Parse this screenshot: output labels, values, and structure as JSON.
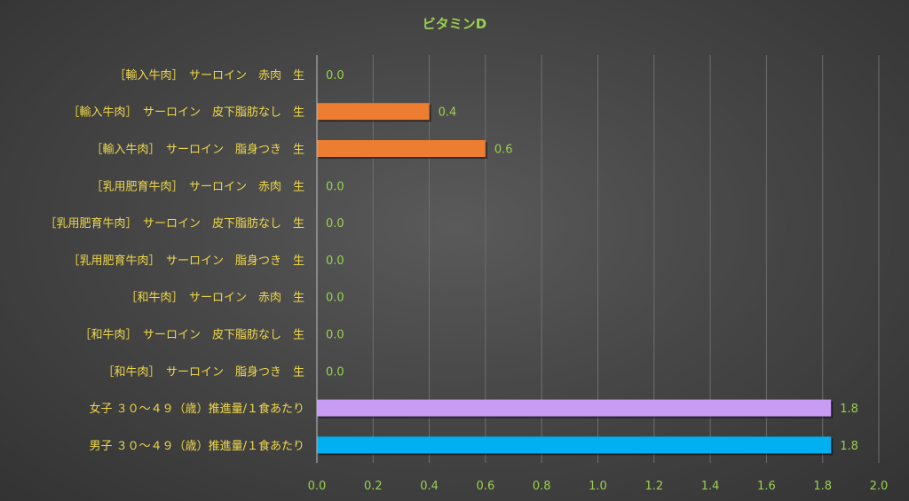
{
  "chart_data": {
    "type": "bar",
    "orientation": "horizontal",
    "title": "ビタミンD",
    "categories": [
      "［輸入牛肉］　サーロイン　赤肉　生",
      "［輸入牛肉］　サーロイン　皮下脂肪なし　生",
      "［輸入牛肉］　サーロイン　脂身つき　生",
      "［乳用肥育牛肉］　サーロイン　赤肉　生",
      "［乳用肥育牛肉］　サーロイン　皮下脂肪なし　生",
      "［乳用肥育牛肉］　サーロイン　脂身つき　生",
      "［和牛肉］　サーロイン　赤肉　生",
      "［和牛肉］　サーロイン　皮下脂肪なし　生",
      "［和牛肉］　サーロイン　脂身つき　生",
      "女子 ３０～４９（歳）推進量/１食あたり",
      "男子 ３０～４９（歳）推進量/１食あたり"
    ],
    "values": [
      0.0,
      0.4,
      0.6,
      0.0,
      0.0,
      0.0,
      0.0,
      0.0,
      0.0,
      1.83,
      1.83
    ],
    "data_labels": [
      "0.0",
      "0.4",
      "0.6",
      "0.0",
      "0.0",
      "0.0",
      "0.0",
      "0.0",
      "0.0",
      "1.8",
      "1.8"
    ],
    "bar_colors": [
      "#ed7d31",
      "#ed7d31",
      "#ed7d31",
      "#ed7d31",
      "#ed7d31",
      "#ed7d31",
      "#ed7d31",
      "#ed7d31",
      "#ed7d31",
      "#c89bf5",
      "#00b0f0"
    ],
    "xlim": [
      0,
      2.0
    ],
    "xticks": [
      "0.0",
      "0.2",
      "0.4",
      "0.6",
      "0.8",
      "1.0",
      "1.2",
      "1.4",
      "1.6",
      "1.8",
      "2.0"
    ],
    "xlabel": "",
    "ylabel": "",
    "grid": "vertical",
    "legend": "none",
    "colors": {
      "title": "#9bd14f",
      "category_labels": "#f0d84a",
      "tick_labels": "#9bd14f",
      "gridlines": "#6e6e6e"
    }
  }
}
